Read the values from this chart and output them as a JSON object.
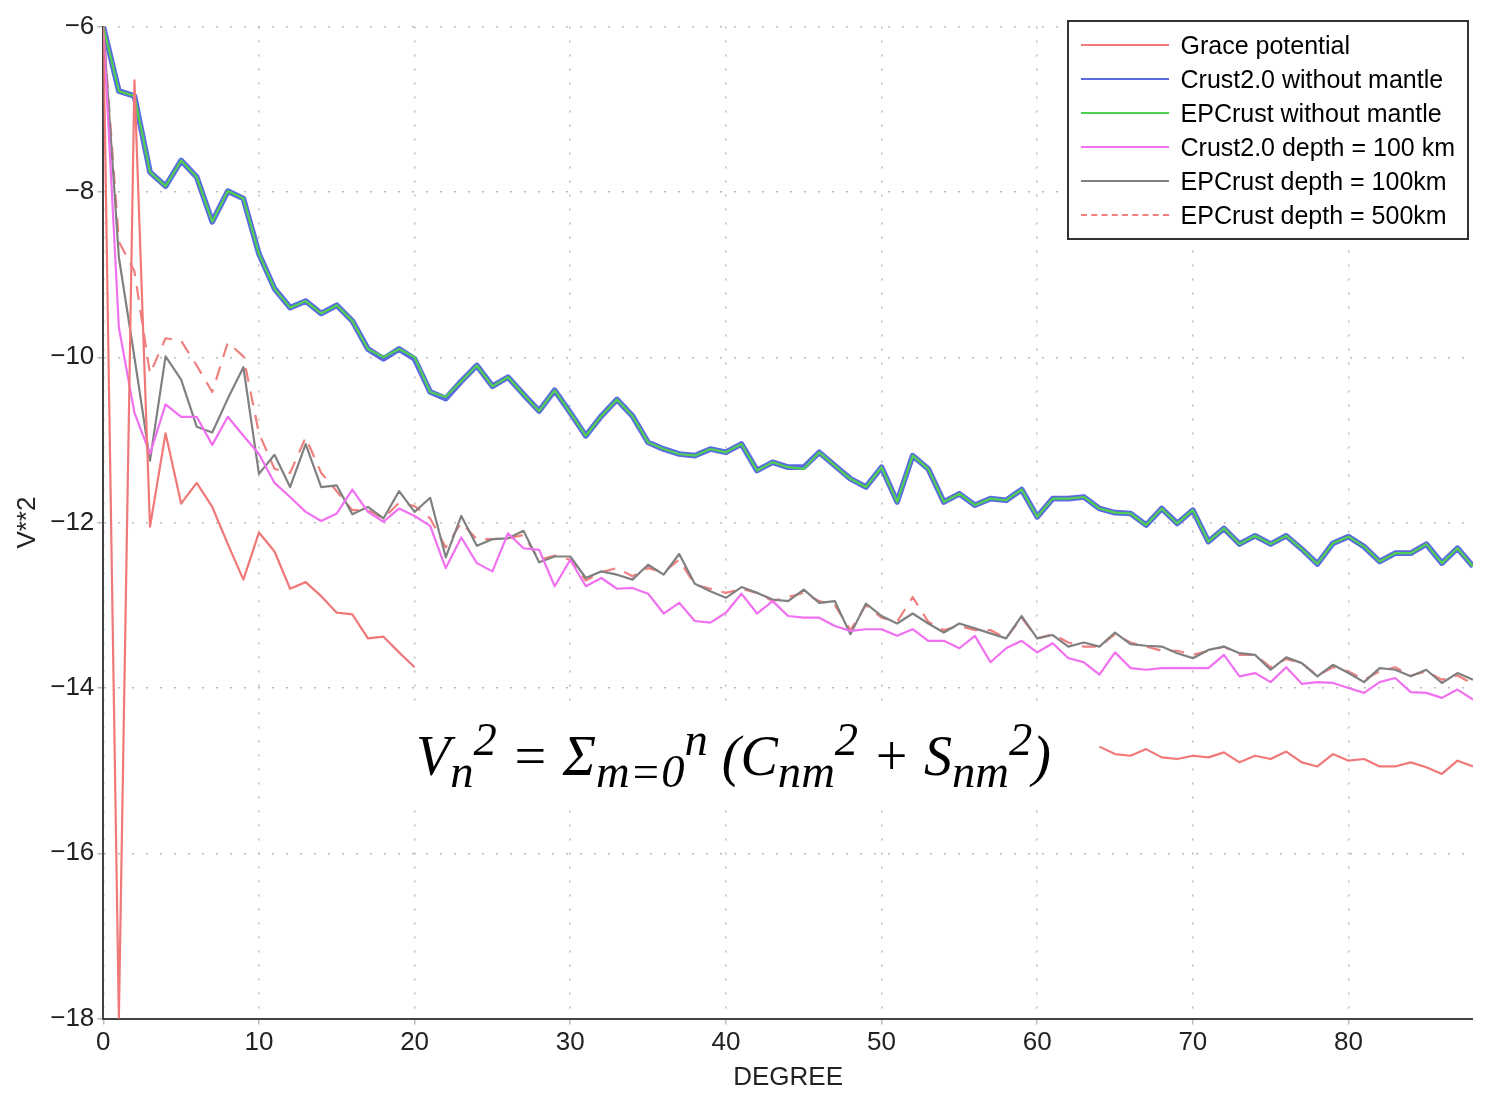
{
  "chart_data": {
    "type": "line",
    "xlabel": "DEGREE",
    "ylabel": "V**2",
    "x": [
      0,
      1,
      2,
      3,
      4,
      5,
      6,
      7,
      8,
      9,
      10,
      11,
      12,
      13,
      14,
      15,
      16,
      17,
      18,
      19,
      20,
      21,
      22,
      23,
      24,
      25,
      26,
      27,
      28,
      29,
      30,
      31,
      32,
      33,
      34,
      35,
      36,
      37,
      38,
      39,
      40,
      41,
      42,
      43,
      44,
      45,
      46,
      47,
      48,
      49,
      50,
      51,
      52,
      53,
      54,
      55,
      56,
      57,
      58,
      59,
      60,
      61,
      62,
      63,
      64,
      65,
      66,
      67,
      68,
      69,
      70,
      71,
      72,
      73,
      74,
      75,
      76,
      77,
      78,
      79,
      80,
      81,
      82,
      83,
      84,
      85,
      86,
      87,
      88
    ],
    "xlim": [
      0,
      88
    ],
    "xticks": [
      0,
      10,
      20,
      30,
      40,
      50,
      60,
      70,
      80
    ],
    "ylim": [
      -18,
      -6
    ],
    "yticks": [
      -18,
      -16,
      -14,
      -12,
      -10,
      -8,
      -6
    ],
    "grid": true,
    "legend": "top right",
    "marker": "none",
    "annotations": [
      "V$_{n}$$^{2}$ = Σ$_{m=0}$$^{n}$ (C$_{nm}$$^{2}$ + S$_{nm}$$^{2}$)"
    ],
    "series": [
      {
        "name": "Grace potential",
        "color": "#f07878",
        "values": [
          -6,
          -18,
          -6.65,
          -12.05,
          -10.92,
          -11.77,
          -11.52,
          -11.81,
          -12.26,
          -12.69,
          -12.12,
          -12.35,
          -12.8,
          -12.72,
          -12.89,
          -13.09,
          -13.11,
          -13.4,
          -13.38,
          -13.57,
          -13.75,
          null,
          null,
          null,
          null,
          null,
          null,
          null,
          null,
          null,
          null,
          null,
          null,
          null,
          null,
          null,
          null,
          null,
          null,
          null,
          null,
          null,
          null,
          null,
          null,
          null,
          null,
          null,
          null,
          null,
          null,
          null,
          null,
          null,
          null,
          null,
          null,
          null,
          null,
          null,
          null,
          null,
          null,
          null,
          -14.71,
          -14.8,
          -14.82,
          -14.74,
          -14.84,
          -14.86,
          -14.82,
          -14.84,
          -14.78,
          -14.9,
          -14.82,
          -14.86,
          -14.77,
          -14.9,
          -14.95,
          -14.8,
          -14.88,
          -14.86,
          -14.95,
          -14.95,
          -14.9,
          -14.96,
          -15.04,
          -14.88,
          -14.95
        ]
      },
      {
        "name": "Crust2.0 without mantle",
        "color": "#5a6ae0",
        "values": [
          -6,
          -6.78,
          -6.84,
          -7.76,
          -7.93,
          -7.62,
          -7.82,
          -8.36,
          -7.99,
          -8.08,
          -8.75,
          -9.17,
          -9.4,
          -9.32,
          -9.47,
          -9.37,
          -9.56,
          -9.9,
          -10.02,
          -9.9,
          -10.02,
          -10.42,
          -10.5,
          -10.29,
          -10.1,
          -10.35,
          -10.24,
          -10.45,
          -10.65,
          -10.4,
          -10.67,
          -10.95,
          -10.71,
          -10.51,
          -10.71,
          -11.03,
          -11.11,
          -11.17,
          -11.19,
          -11.11,
          -11.15,
          -11.05,
          -11.37,
          -11.27,
          -11.33,
          -11.33,
          -11.15,
          -11.31,
          -11.47,
          -11.57,
          -11.33,
          -11.75,
          -11.19,
          -11.35,
          -11.75,
          -11.65,
          -11.79,
          -11.71,
          -11.73,
          -11.6,
          -11.93,
          -11.71,
          -11.71,
          -11.69,
          -11.83,
          -11.88,
          -11.89,
          -12.03,
          -11.83,
          -12.01,
          -11.85,
          -12.23,
          -12.07,
          -12.26,
          -12.16,
          -12.26,
          -12.16,
          -12.32,
          -12.5,
          -12.25,
          -12.17,
          -12.29,
          -12.47,
          -12.37,
          -12.37,
          -12.26,
          -12.49,
          -12.31,
          -12.53
        ]
      },
      {
        "name": "EPCrust without mantle",
        "color": "#50d050",
        "values": [
          -6,
          -6.78,
          -6.84,
          -7.76,
          -7.93,
          -7.62,
          -7.82,
          -8.36,
          -7.99,
          -8.08,
          -8.75,
          -9.17,
          -9.4,
          -9.32,
          -9.47,
          -9.37,
          -9.56,
          -9.9,
          -10,
          -9.9,
          -10,
          -10.42,
          -10.48,
          -10.29,
          -10.1,
          -10.35,
          -10.24,
          -10.45,
          -10.65,
          -10.4,
          -10.67,
          -10.95,
          -10.71,
          -10.51,
          -10.71,
          -11.03,
          -11.11,
          -11.17,
          -11.19,
          -11.11,
          -11.15,
          -11.05,
          -11.37,
          -11.27,
          -11.33,
          -11.35,
          -11.15,
          -11.31,
          -11.47,
          -11.57,
          -11.33,
          -11.75,
          -11.19,
          -11.35,
          -11.75,
          -11.65,
          -11.79,
          -11.71,
          -11.73,
          -11.6,
          -11.93,
          -11.71,
          -11.71,
          -11.69,
          -11.83,
          -11.88,
          -11.89,
          -12.03,
          -11.83,
          -12.01,
          -11.85,
          -12.23,
          -12.07,
          -12.26,
          -12.16,
          -12.26,
          -12.16,
          -12.32,
          -12.5,
          -12.25,
          -12.17,
          -12.29,
          -12.47,
          -12.37,
          -12.37,
          -12.26,
          -12.49,
          -12.31,
          -12.53
        ]
      },
      {
        "name": "Crust2.0 depth = 100 km",
        "color": "#f070f0",
        "values": [
          -6,
          -9.64,
          -10.67,
          -11.17,
          -10.57,
          -10.72,
          -10.72,
          -11.06,
          -10.72,
          -10.95,
          -11.17,
          -11.52,
          -11.69,
          -11.87,
          -11.98,
          -11.89,
          -11.6,
          -11.87,
          -11.99,
          -11.83,
          -11.92,
          -12.04,
          -12.55,
          -12.18,
          -12.49,
          -12.59,
          -12.13,
          -12.31,
          -12.33,
          -12.77,
          -12.45,
          -12.77,
          -12.67,
          -12.8,
          -12.79,
          -12.86,
          -13.1,
          -12.97,
          -13.19,
          -13.21,
          -13.09,
          -12.86,
          -13.1,
          -12.95,
          -13.13,
          -13.15,
          -13.15,
          -13.25,
          -13.31,
          -13.29,
          -13.29,
          -13.37,
          -13.29,
          -13.43,
          -13.43,
          -13.52,
          -13.37,
          -13.69,
          -13.52,
          -13.43,
          -13.57,
          -13.46,
          -13.64,
          -13.69,
          -13.84,
          -13.57,
          -13.76,
          -13.78,
          -13.76,
          -13.76,
          -13.76,
          -13.76,
          -13.6,
          -13.86,
          -13.82,
          -13.93,
          -13.75,
          -13.95,
          -13.93,
          -13.94,
          -14,
          -14.06,
          -13.93,
          -13.88,
          -14.05,
          -14.06,
          -14.12,
          -14.02,
          -14.14
        ]
      },
      {
        "name": "EPCrust depth = 100km",
        "color": "#808080",
        "values": [
          -6,
          -8.79,
          -10,
          -11.25,
          -9.99,
          -10.27,
          -10.84,
          -10.91,
          -10.5,
          -10.12,
          -11.41,
          -11.18,
          -11.57,
          -11.05,
          -11.57,
          -11.55,
          -11.9,
          -11.81,
          -11.95,
          -11.62,
          -11.87,
          -11.7,
          -12.42,
          -11.92,
          -12.28,
          -12.2,
          -12.19,
          -12.1,
          -12.48,
          -12.41,
          -12.41,
          -12.67,
          -12.59,
          -12.63,
          -12.69,
          -12.51,
          -12.63,
          -12.38,
          -12.74,
          -12.83,
          -12.91,
          -12.78,
          -12.85,
          -12.93,
          -12.95,
          -12.81,
          -12.97,
          -12.95,
          -13.35,
          -12.98,
          -13.13,
          -13.22,
          -13.1,
          -13.22,
          -13.33,
          -13.22,
          -13.28,
          -13.34,
          -13.4,
          -13.13,
          -13.4,
          -13.36,
          -13.5,
          -13.45,
          -13.5,
          -13.33,
          -13.47,
          -13.49,
          -13.5,
          -13.58,
          -13.64,
          -13.54,
          -13.5,
          -13.58,
          -13.6,
          -13.78,
          -13.63,
          -13.7,
          -13.86,
          -13.72,
          -13.82,
          -13.93,
          -13.76,
          -13.78,
          -13.86,
          -13.78,
          -13.94,
          -13.82,
          -13.9
        ]
      },
      {
        "name": "EPCrust depth = 500km",
        "color": "#f08080",
        "line_style": "dashed",
        "values": [
          -6,
          -8.6,
          -8.96,
          -10.2,
          -9.77,
          -9.8,
          -10.1,
          -10.42,
          -9.82,
          -9.99,
          -10.92,
          -11.35,
          -11.4,
          -10.97,
          -11.4,
          -11.62,
          -11.85,
          -11.85,
          -11.95,
          -11.76,
          -11.8,
          -11.95,
          -12.3,
          -12,
          -12.2,
          -12.2,
          -12.19,
          -12.15,
          -12.45,
          -12.4,
          -12.45,
          -12.7,
          -12.6,
          -12.55,
          -12.65,
          -12.55,
          -12.6,
          -12.45,
          -12.75,
          -12.8,
          -12.85,
          -12.8,
          -12.85,
          -12.95,
          -12.9,
          -12.85,
          -12.95,
          -13,
          -13.3,
          -13,
          -13.15,
          -13.2,
          -12.9,
          -13.2,
          -13.3,
          -13.25,
          -13.3,
          -13.3,
          -13.4,
          -13.15,
          -13.4,
          -13.35,
          -13.45,
          -13.5,
          -13.5,
          -13.35,
          -13.45,
          -13.5,
          -13.55,
          -13.55,
          -13.6,
          -13.55,
          -13.5,
          -13.6,
          -13.6,
          -13.75,
          -13.65,
          -13.7,
          -13.85,
          -13.75,
          -13.8,
          -13.9,
          -13.8,
          -13.75,
          -13.85,
          -13.8,
          -13.9,
          -13.85,
          -13.95
        ]
      }
    ]
  }
}
